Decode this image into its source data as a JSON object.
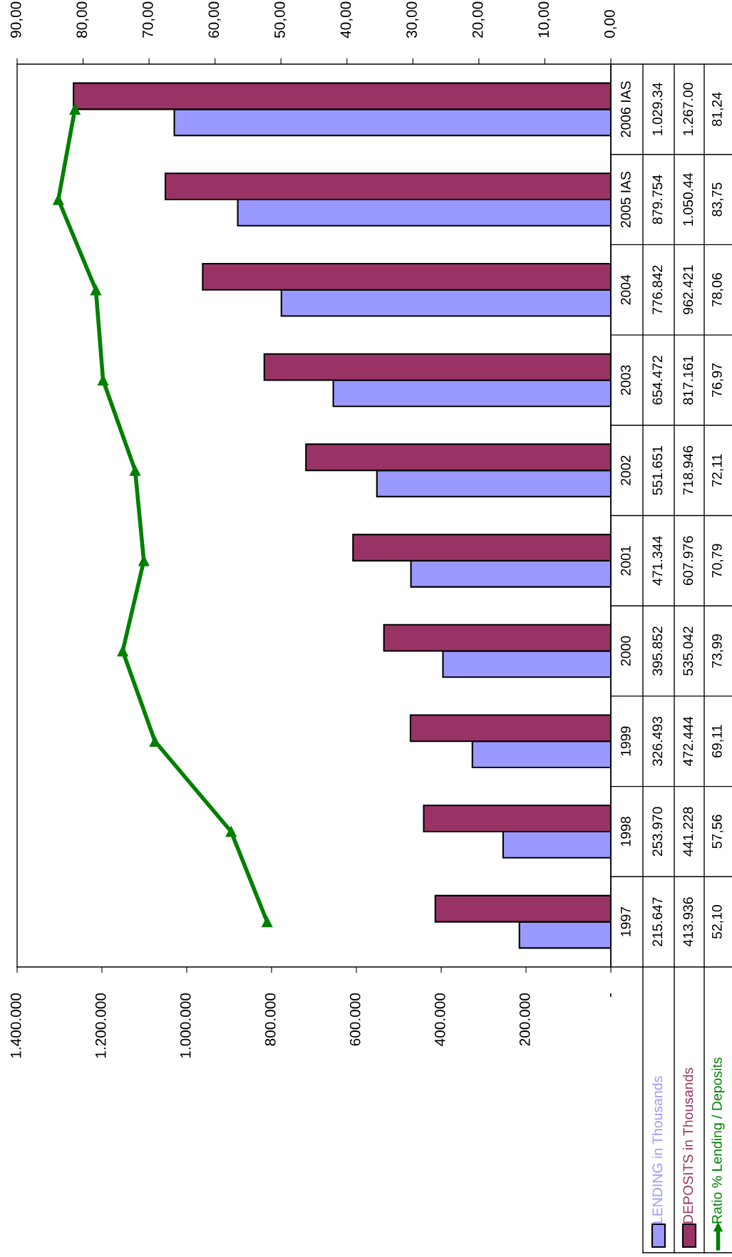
{
  "chart_data": {
    "type": "bar",
    "orientation": "horizontal",
    "legend": "bottom",
    "grid": false,
    "categories": [
      "2006 IAS",
      "2005 IAS",
      "2004",
      "2003",
      "2002",
      "2001",
      "2000",
      "1999",
      "1998",
      "1997"
    ],
    "series": [
      {
        "name": "LENDING in Thousands",
        "color": "#9999ff",
        "values": [
          1029340,
          879754,
          776842,
          654472,
          551651,
          471344,
          395852,
          326493,
          253970,
          215647
        ],
        "value_labels": [
          "1.029.34",
          "879.754",
          "776.842",
          "654.472",
          "551.651",
          "471.344",
          "395.852",
          "326.493",
          "253.970",
          "215.647"
        ]
      },
      {
        "name": "DEPOSITS in Thousands",
        "color": "#993366",
        "values": [
          1267000,
          1050440,
          962421,
          817161,
          718946,
          607976,
          535042,
          472444,
          441228,
          413936
        ],
        "value_labels": [
          "1.267.00",
          "1.050.44",
          "962.421",
          "817.161",
          "718.946",
          "607.976",
          "535.042",
          "472.444",
          "441.228",
          "413.936"
        ]
      },
      {
        "name": "Ratio % Lending / Deposits",
        "type": "line",
        "axis": "x2",
        "color": "#008000",
        "marker": "triangle",
        "values": [
          81.24,
          83.75,
          78.06,
          76.97,
          72.11,
          70.79,
          73.99,
          69.11,
          57.56,
          52.1
        ],
        "value_labels": [
          "81,24",
          "83,75",
          "78,06",
          "76,97",
          "72,11",
          "70,79",
          "73,99",
          "69,11",
          "57,56",
          "52,10"
        ]
      }
    ],
    "xlim": [
      1400000,
      0
    ],
    "xticks": [
      {
        "value": 0,
        "label": "-"
      },
      {
        "value": 200000,
        "label": "200.000"
      },
      {
        "value": 400000,
        "label": "400.000"
      },
      {
        "value": 600000,
        "label": "600.000"
      },
      {
        "value": 800000,
        "label": "800.000"
      },
      {
        "value": 1000000,
        "label": "1.000.000"
      },
      {
        "value": 1200000,
        "label": "1.200.000"
      },
      {
        "value": 1400000,
        "label": "1.400.000"
      }
    ],
    "x2lim": [
      90,
      0
    ],
    "x2ticks": [
      {
        "value": 0,
        "label": "0,00"
      },
      {
        "value": 10,
        "label": "10,00"
      },
      {
        "value": 20,
        "label": "20,00"
      },
      {
        "value": 30,
        "label": "30,00"
      },
      {
        "value": 40,
        "label": "40,00"
      },
      {
        "value": 50,
        "label": "50,00"
      },
      {
        "value": 60,
        "label": "60,00"
      },
      {
        "value": 70,
        "label": "70,00"
      },
      {
        "value": 80,
        "label": "80,00"
      },
      {
        "value": 90,
        "label": "90,00"
      }
    ]
  }
}
